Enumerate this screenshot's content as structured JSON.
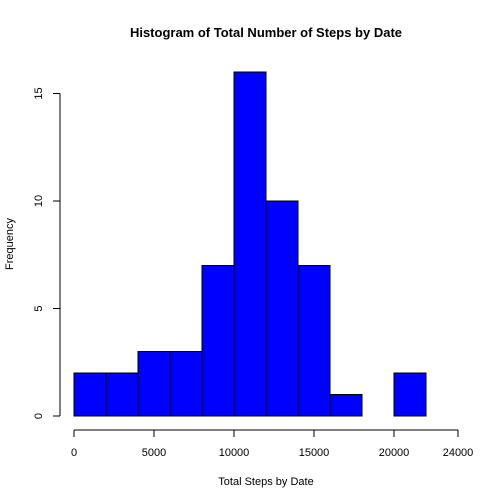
{
  "chart_data": {
    "type": "bar",
    "title": "Histogram of Total Number of Steps by Date",
    "xlabel": "Total Steps by Date",
    "ylabel": "Frequency",
    "bar_color": "#0000ff",
    "bin_edges": [
      0,
      2000,
      4000,
      6000,
      8000,
      10000,
      12000,
      14000,
      16000,
      18000,
      20000,
      22000
    ],
    "values": [
      2,
      2,
      3,
      3,
      7,
      16,
      10,
      7,
      1,
      0,
      2
    ],
    "xlim": [
      0,
      24000
    ],
    "ylim": [
      0,
      16
    ],
    "x_ticks": [
      0,
      5000,
      10000,
      15000,
      20000,
      24000
    ],
    "x_tick_labels": [
      "0",
      "5000",
      "10000",
      "15000",
      "20000",
      "24000"
    ],
    "y_ticks": [
      0,
      5,
      10,
      15
    ],
    "y_tick_labels": [
      "0",
      "5",
      "10",
      "15"
    ],
    "grid": false
  }
}
